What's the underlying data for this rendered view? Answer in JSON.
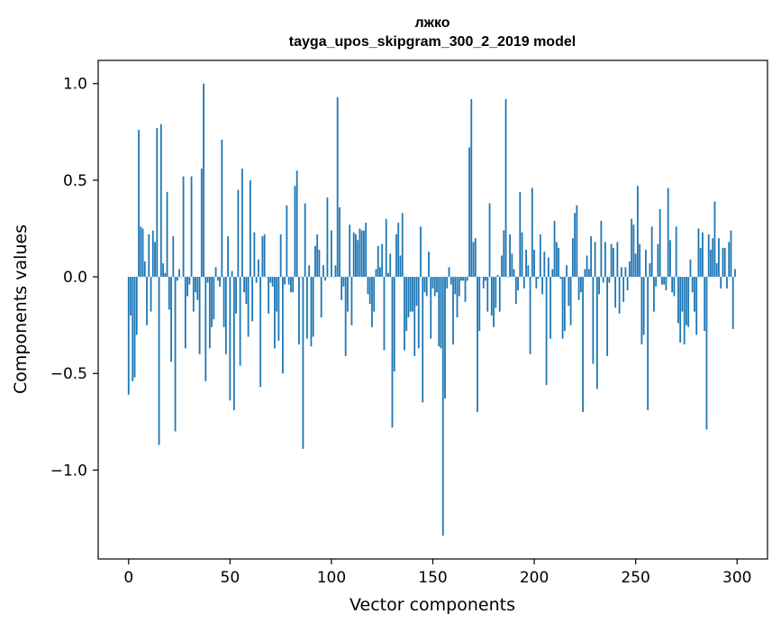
{
  "chart_data": {
    "type": "bar",
    "title": "лжко",
    "subtitle": "tayga_upos_skipgram_300_2_2019 model",
    "xlabel": "Vector components",
    "ylabel": "Components values",
    "xlim": [
      -15,
      315
    ],
    "ylim": [
      -1.46,
      1.12
    ],
    "xticks": [
      {
        "value": 0,
        "label": "0"
      },
      {
        "value": 50,
        "label": "50"
      },
      {
        "value": 100,
        "label": "100"
      },
      {
        "value": 150,
        "label": "150"
      },
      {
        "value": 200,
        "label": "200"
      },
      {
        "value": 250,
        "label": "250"
      },
      {
        "value": 300,
        "label": "300"
      }
    ],
    "yticks": [
      {
        "value": -1.0,
        "label": "−1.0"
      },
      {
        "value": -0.5,
        "label": "−0.5"
      },
      {
        "value": 0.0,
        "label": "0.0"
      },
      {
        "value": 0.5,
        "label": "0.5"
      },
      {
        "value": 1.0,
        "label": "1.0"
      }
    ],
    "grid": false,
    "bar_color": "#1f77b4",
    "x": "0..299",
    "values": [
      -0.61,
      -0.2,
      -0.54,
      -0.52,
      -0.3,
      0.76,
      0.26,
      0.25,
      0.08,
      -0.25,
      0.22,
      -0.18,
      0.24,
      0.18,
      0.77,
      -0.87,
      0.79,
      0.07,
      0.02,
      0.44,
      -0.17,
      -0.44,
      0.21,
      -0.8,
      -0.02,
      0.04,
      0.0,
      0.52,
      -0.37,
      -0.1,
      -0.04,
      0.52,
      -0.18,
      -0.08,
      -0.12,
      -0.4,
      0.56,
      1.0,
      -0.54,
      -0.03,
      -0.37,
      -0.26,
      -0.22,
      0.05,
      -0.02,
      -0.05,
      0.71,
      -0.26,
      -0.4,
      0.21,
      -0.64,
      0.03,
      -0.69,
      -0.19,
      0.45,
      -0.46,
      0.56,
      -0.08,
      -0.14,
      -0.31,
      0.5,
      -0.23,
      0.23,
      -0.03,
      0.09,
      -0.57,
      0.21,
      0.22,
      0.0,
      -0.19,
      -0.03,
      -0.05,
      -0.37,
      -0.18,
      -0.33,
      0.22,
      -0.5,
      -0.04,
      0.37,
      -0.04,
      -0.08,
      -0.08,
      0.47,
      0.55,
      -0.35,
      0.0,
      -0.89,
      0.38,
      -0.32,
      0.06,
      -0.36,
      -0.31,
      0.16,
      0.22,
      0.14,
      -0.21,
      0.06,
      -0.02,
      0.41,
      0.0,
      0.24,
      0.0,
      0.06,
      0.93,
      0.36,
      -0.12,
      -0.05,
      -0.41,
      -0.18,
      0.27,
      -0.25,
      0.23,
      0.22,
      0.19,
      0.25,
      0.24,
      0.24,
      0.28,
      -0.09,
      -0.14,
      -0.26,
      -0.18,
      0.04,
      0.16,
      0.05,
      0.17,
      -0.38,
      0.3,
      0.02,
      0.12,
      -0.78,
      -0.49,
      0.22,
      0.28,
      0.11,
      0.33,
      -0.38,
      -0.28,
      -0.21,
      -0.18,
      -0.18,
      -0.41,
      -0.15,
      -0.37,
      0.26,
      -0.65,
      -0.08,
      -0.1,
      0.13,
      -0.32,
      -0.06,
      -0.1,
      -0.08,
      -0.36,
      -0.37,
      -1.34,
      -0.63,
      -0.06,
      0.05,
      -0.04,
      -0.35,
      -0.09,
      -0.21,
      -0.1,
      -0.02,
      -0.02,
      -0.13,
      -0.02,
      0.67,
      0.92,
      0.18,
      0.2,
      -0.7,
      -0.28,
      0.0,
      -0.06,
      -0.02,
      -0.18,
      0.38,
      -0.2,
      -0.26,
      -0.16,
      0.01,
      -0.18,
      0.11,
      0.24,
      0.92,
      0.0,
      0.22,
      0.12,
      0.04,
      -0.14,
      -0.07,
      0.44,
      0.23,
      -0.06,
      0.14,
      0.06,
      -0.4,
      0.46,
      0.14,
      -0.06,
      -0.01,
      0.22,
      -0.09,
      0.13,
      -0.56,
      0.1,
      -0.32,
      0.04,
      0.29,
      0.18,
      0.15,
      -0.01,
      -0.32,
      -0.28,
      0.06,
      -0.15,
      -0.25,
      0.2,
      0.33,
      0.37,
      -0.12,
      -0.08,
      -0.7,
      0.04,
      0.11,
      0.04,
      0.21,
      -0.45,
      0.18,
      -0.58,
      -0.09,
      0.29,
      -0.03,
      0.18,
      -0.41,
      -0.03,
      0.17,
      0.15,
      -0.16,
      0.18,
      -0.19,
      0.05,
      -0.13,
      0.05,
      -0.07,
      0.08,
      0.3,
      0.27,
      0.12,
      0.47,
      0.17,
      -0.35,
      -0.3,
      0.14,
      -0.69,
      0.07,
      0.26,
      -0.18,
      -0.05,
      0.17,
      0.35,
      -0.04,
      -0.04,
      -0.07,
      0.46,
      0.19,
      -0.08,
      -0.1,
      0.26,
      -0.24,
      -0.34,
      -0.18,
      -0.35,
      -0.25,
      -0.26,
      0.09,
      -0.08,
      -0.18,
      -0.3,
      0.25,
      0.15,
      0.23,
      -0.28,
      -0.79,
      0.22,
      0.14,
      0.2,
      0.39,
      0.07,
      0.2,
      -0.06,
      0.15,
      0.15,
      -0.06,
      0.18,
      0.24,
      -0.27,
      0.04
    ]
  }
}
